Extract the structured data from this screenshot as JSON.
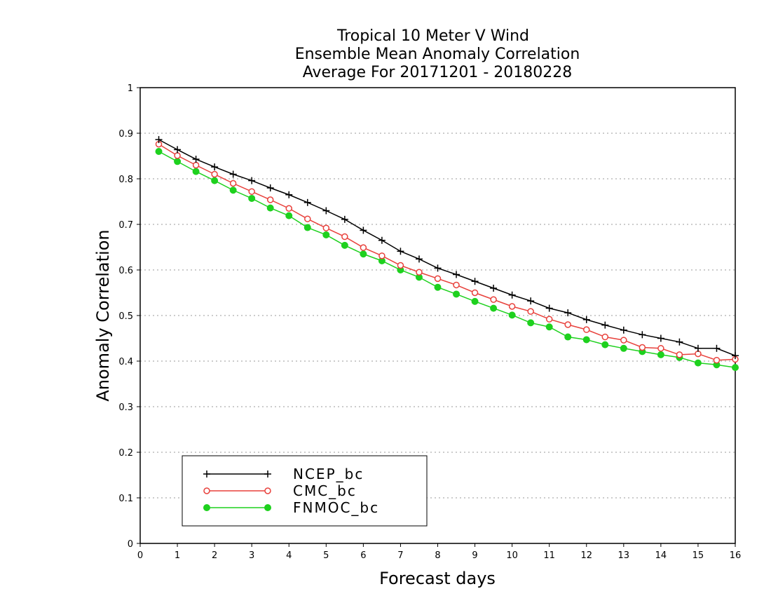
{
  "chart_data": {
    "type": "line",
    "title_lines": [
      "Tropical 10 Meter V Wind",
      "Ensemble Mean Anomaly Correlation",
      "Average For 20171201 - 20180228"
    ],
    "xlabel": "Forecast days",
    "ylabel": "Anomaly Correlation",
    "xlim": [
      0,
      16
    ],
    "ylim": [
      0,
      1
    ],
    "xticks": [
      0,
      1,
      2,
      3,
      4,
      5,
      6,
      7,
      8,
      9,
      10,
      11,
      12,
      13,
      14,
      15,
      16
    ],
    "xtick_labels": [
      "0",
      "1",
      "2",
      "3",
      "4",
      "5",
      "6",
      "7",
      "8",
      "9",
      "10",
      "11",
      "12",
      "13",
      "14",
      "15",
      "16"
    ],
    "yticks": [
      0,
      0.1,
      0.2,
      0.3,
      0.4,
      0.5,
      0.6,
      0.7,
      0.8,
      0.9,
      1
    ],
    "ytick_labels": [
      "0",
      "0.1",
      "0.2",
      "0.3",
      "0.4",
      "0.5",
      "0.6",
      "0.7",
      "0.8",
      "0.9",
      "1"
    ],
    "grid": true,
    "legend_position": "bottom-left",
    "x": [
      0.5,
      1.0,
      1.5,
      2.0,
      2.5,
      3.0,
      3.5,
      4.0,
      4.5,
      5.0,
      5.5,
      6.0,
      6.5,
      7.0,
      7.5,
      8.0,
      8.5,
      9.0,
      9.5,
      10.0,
      10.5,
      11.0,
      11.5,
      12.0,
      12.5,
      13.0,
      13.5,
      14.0,
      14.5,
      15.0,
      15.5,
      16.0
    ],
    "series": [
      {
        "name": "NCEP_bc",
        "color": "#000000",
        "marker": "plus",
        "values": [
          0.886,
          0.864,
          0.843,
          0.826,
          0.81,
          0.796,
          0.78,
          0.765,
          0.748,
          0.73,
          0.711,
          0.687,
          0.665,
          0.641,
          0.624,
          0.604,
          0.59,
          0.575,
          0.56,
          0.545,
          0.532,
          0.516,
          0.506,
          0.491,
          0.479,
          0.468,
          0.458,
          0.45,
          0.442,
          0.428,
          0.428,
          0.412
        ]
      },
      {
        "name": "CMC_bc",
        "color": "#e8413c",
        "marker": "open-circle",
        "values": [
          0.876,
          0.851,
          0.83,
          0.81,
          0.79,
          0.772,
          0.754,
          0.735,
          0.712,
          0.692,
          0.673,
          0.649,
          0.631,
          0.61,
          0.595,
          0.581,
          0.567,
          0.55,
          0.535,
          0.52,
          0.509,
          0.492,
          0.48,
          0.469,
          0.453,
          0.446,
          0.43,
          0.428,
          0.414,
          0.416,
          0.402,
          0.404
        ]
      },
      {
        "name": "FNMOC_bc",
        "color": "#1ed11e",
        "marker": "filled-circle",
        "values": [
          0.86,
          0.838,
          0.816,
          0.796,
          0.775,
          0.757,
          0.736,
          0.719,
          0.693,
          0.677,
          0.654,
          0.635,
          0.62,
          0.6,
          0.584,
          0.562,
          0.547,
          0.531,
          0.516,
          0.501,
          0.484,
          0.475,
          0.453,
          0.447,
          0.436,
          0.428,
          0.421,
          0.414,
          0.408,
          0.396,
          0.392,
          0.386
        ]
      }
    ]
  }
}
